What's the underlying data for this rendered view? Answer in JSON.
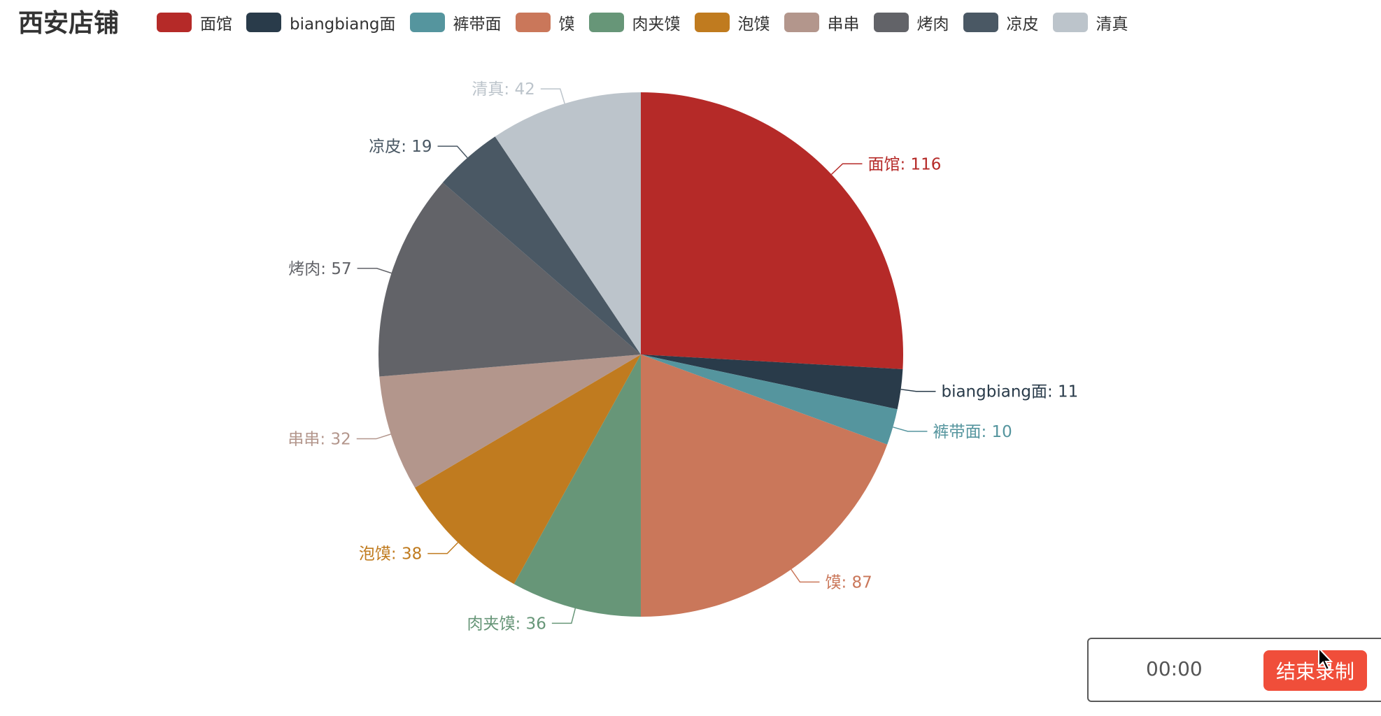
{
  "title": "西安店铺",
  "legend": [
    "面馆",
    "biangbiang面",
    "裤带面",
    "馍",
    "肉夹馍",
    "泡馍",
    "串串",
    "烤肉",
    "凉皮",
    "清真"
  ],
  "colors": [
    "#b52a28",
    "#293b4a",
    "#55959e",
    "#ca775a",
    "#679678",
    "#c07b1f",
    "#b3968c",
    "#626368",
    "#4a5864",
    "#bcc4cb"
  ],
  "chart_data": {
    "type": "pie",
    "title": "西安店铺",
    "categories": [
      "面馆",
      "biangbiang面",
      "裤带面",
      "馍",
      "肉夹馍",
      "泡馍",
      "串串",
      "烤肉",
      "凉皮",
      "清真"
    ],
    "values": [
      116,
      11,
      10,
      87,
      36,
      38,
      32,
      57,
      19,
      42
    ],
    "labels": [
      "面馆: 116",
      "biangbiang面: 11",
      "裤带面: 10",
      "馍: 87",
      "肉夹馍: 36",
      "泡馍: 38",
      "串串: 32",
      "烤肉: 57",
      "凉皮: 19",
      "清真: 42"
    ],
    "legend_position": "top"
  },
  "recorder": {
    "timer": "00:00",
    "stop_label": "结束录制"
  },
  "icons": {
    "cursor": "mouse-pointer-icon"
  }
}
